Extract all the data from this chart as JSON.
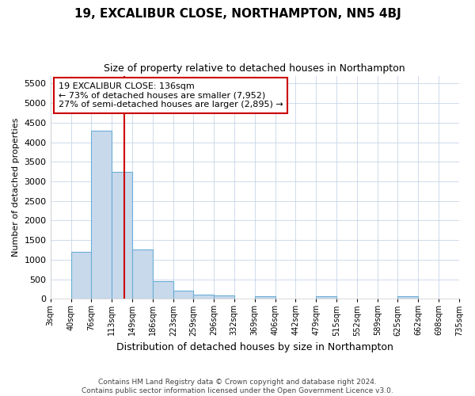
{
  "title": "19, EXCALIBUR CLOSE, NORTHAMPTON, NN5 4BJ",
  "subtitle": "Size of property relative to detached houses in Northampton",
  "xlabel": "Distribution of detached houses by size in Northampton",
  "ylabel": "Number of detached properties",
  "bin_edges": [
    3,
    40,
    76,
    113,
    149,
    186,
    223,
    259,
    296,
    332,
    369,
    406,
    442,
    479,
    515,
    552,
    589,
    625,
    662,
    698,
    735
  ],
  "bar_heights": [
    0,
    1200,
    4300,
    3250,
    1250,
    450,
    200,
    100,
    80,
    0,
    70,
    0,
    0,
    60,
    0,
    0,
    0,
    60,
    0,
    0
  ],
  "bar_color": "#c8d9ec",
  "bar_edge_color": "#6baed6",
  "red_line_x": 136,
  "ylim": [
    0,
    5700
  ],
  "yticks": [
    0,
    500,
    1000,
    1500,
    2000,
    2500,
    3000,
    3500,
    4000,
    4500,
    5000,
    5500
  ],
  "annotation_title": "19 EXCALIBUR CLOSE: 136sqm",
  "annotation_line1": "← 73% of detached houses are smaller (7,952)",
  "annotation_line2": "27% of semi-detached houses are larger (2,895) →",
  "annotation_box_color": "#ffffff",
  "annotation_box_edge": "#cc0000",
  "footer_line1": "Contains HM Land Registry data © Crown copyright and database right 2024.",
  "footer_line2": "Contains public sector information licensed under the Open Government Licence v3.0.",
  "background_color": "#ffffff",
  "grid_color": "#c8d4e8"
}
